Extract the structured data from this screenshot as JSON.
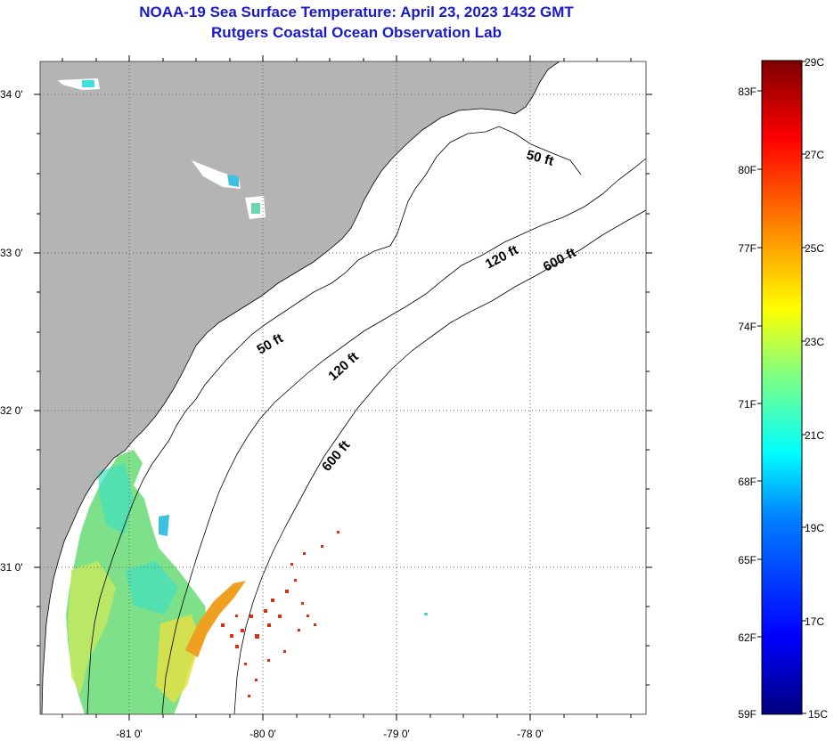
{
  "title": {
    "line1": "NOAA-19 Sea Surface Temperature:  April 23, 2023 1432 GMT",
    "line2": "Rutgers Coastal Ocean Observation Lab"
  },
  "map": {
    "lat_labels": [
      "34 0'",
      "33 0'",
      "32 0'",
      "31 0'"
    ],
    "lon_labels": [
      "-81 0'",
      "-80 0'",
      "-79 0'",
      "-78 0'"
    ],
    "contour_labels": [
      "50 ft",
      "50 ft",
      "120 ft",
      "120 ft",
      "600 ft",
      "600 ft"
    ],
    "land_color": "#b4b4b4",
    "ocean_no_data_color": "#ffffff"
  },
  "colorbar": {
    "fahrenheit_labels": [
      "83F",
      "80F",
      "77F",
      "74F",
      "71F",
      "68F",
      "65F",
      "62F",
      "59F"
    ],
    "celsius_labels": [
      "29C",
      "27C",
      "25C",
      "23C",
      "21C",
      "19C",
      "17C",
      "15C"
    ],
    "range_celsius": [
      15,
      29
    ],
    "colors_low_to_high": [
      "#00007f",
      "#0000ff",
      "#0080ff",
      "#00ffff",
      "#80ff80",
      "#ffff00",
      "#ff8000",
      "#ff0000",
      "#7f0000"
    ]
  }
}
